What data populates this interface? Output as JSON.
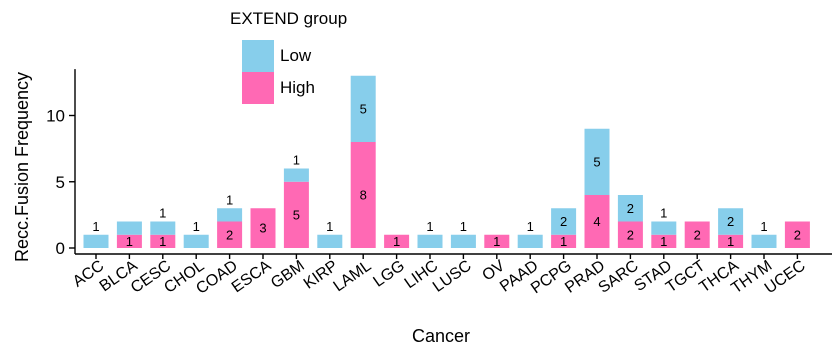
{
  "chart_data": {
    "type": "bar",
    "stacked": true,
    "title": "",
    "xlabel": "Cancer",
    "ylabel": "Recc.Fusion Frequency",
    "ylim": [
      0,
      13.5
    ],
    "yticks": [
      0,
      5,
      10
    ],
    "legend": {
      "title": "EXTEND group",
      "position": "top-left"
    },
    "categories": [
      "ACC",
      "BLCA",
      "CESC",
      "CHOL",
      "COAD",
      "ESCA",
      "GBM",
      "KIRP",
      "LAML",
      "LGG",
      "LIHC",
      "LUSC",
      "OV",
      "PAAD",
      "PCPG",
      "PRAD",
      "SARC",
      "STAD",
      "TGCT",
      "THCA",
      "THYM",
      "UCEC"
    ],
    "series": [
      {
        "name": "High",
        "color": "#FF69B4",
        "values": [
          0,
          1,
          1,
          0,
          2,
          3,
          5,
          0,
          8,
          1,
          0,
          0,
          1,
          0,
          1,
          4,
          2,
          1,
          2,
          1,
          0,
          2
        ]
      },
      {
        "name": "Low",
        "color": "#87CEEB",
        "values": [
          1,
          1,
          1,
          1,
          1,
          0,
          1,
          1,
          5,
          0,
          1,
          1,
          0,
          1,
          2,
          5,
          2,
          1,
          0,
          2,
          1,
          0
        ]
      }
    ],
    "labels": {
      "High": [
        "",
        "1",
        "1",
        "",
        "2",
        "3",
        "5",
        "",
        "8",
        "1",
        "",
        "",
        "1",
        "",
        "1",
        "4",
        "2",
        "1",
        "2",
        "1",
        "",
        "2"
      ],
      "Low": [
        "1",
        "",
        "1",
        "1",
        "1",
        "",
        "1",
        "1",
        "5",
        "",
        "1",
        "1",
        "",
        "1",
        "2",
        "5",
        "2",
        "1",
        "",
        "2",
        "1",
        ""
      ]
    }
  }
}
